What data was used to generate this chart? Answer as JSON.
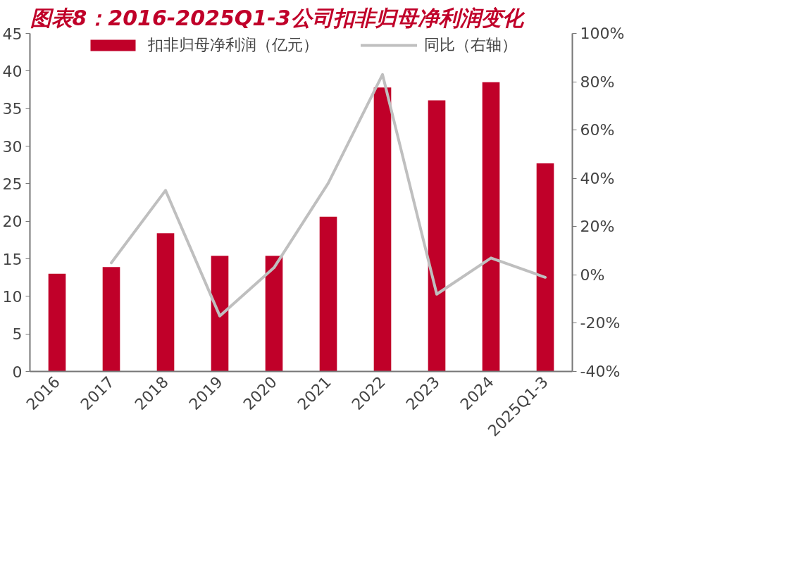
{
  "chart_data": {
    "type": "bar",
    "title": "图表8：2016-2025Q1-3公司扣非归母净利润变化",
    "categories": [
      "2016",
      "2017",
      "2018",
      "2019",
      "2020",
      "2021",
      "2022",
      "2023",
      "2024",
      "2025Q1-3"
    ],
    "series": [
      {
        "name": "扣非归母净利润（亿元）",
        "type": "bar",
        "color": "#c00029",
        "values": [
          13.0,
          13.9,
          18.4,
          15.4,
          15.4,
          20.6,
          37.8,
          36.1,
          38.5,
          27.7
        ]
      },
      {
        "name": "同比（右轴）",
        "type": "line",
        "axis": "y2",
        "color": "#bfbfbf",
        "values": [
          null,
          5,
          35,
          -17,
          3,
          38,
          83,
          -8,
          7,
          -1
        ]
      }
    ],
    "ylim": [
      0,
      45
    ],
    "yticks": [
      0,
      5,
      10,
      15,
      20,
      25,
      30,
      35,
      40,
      45
    ],
    "y2lim": [
      -40,
      100
    ],
    "y2ticks": [
      {
        "value": -40,
        "label": "-40%"
      },
      {
        "value": -20,
        "label": "-20%"
      },
      {
        "value": 0,
        "label": "0%"
      },
      {
        "value": 20,
        "label": "20%"
      },
      {
        "value": 40,
        "label": "40%"
      },
      {
        "value": 60,
        "label": "60%"
      },
      {
        "value": 80,
        "label": "80%"
      },
      {
        "value": 100,
        "label": "100%"
      }
    ],
    "legend": "top",
    "grid": false
  }
}
